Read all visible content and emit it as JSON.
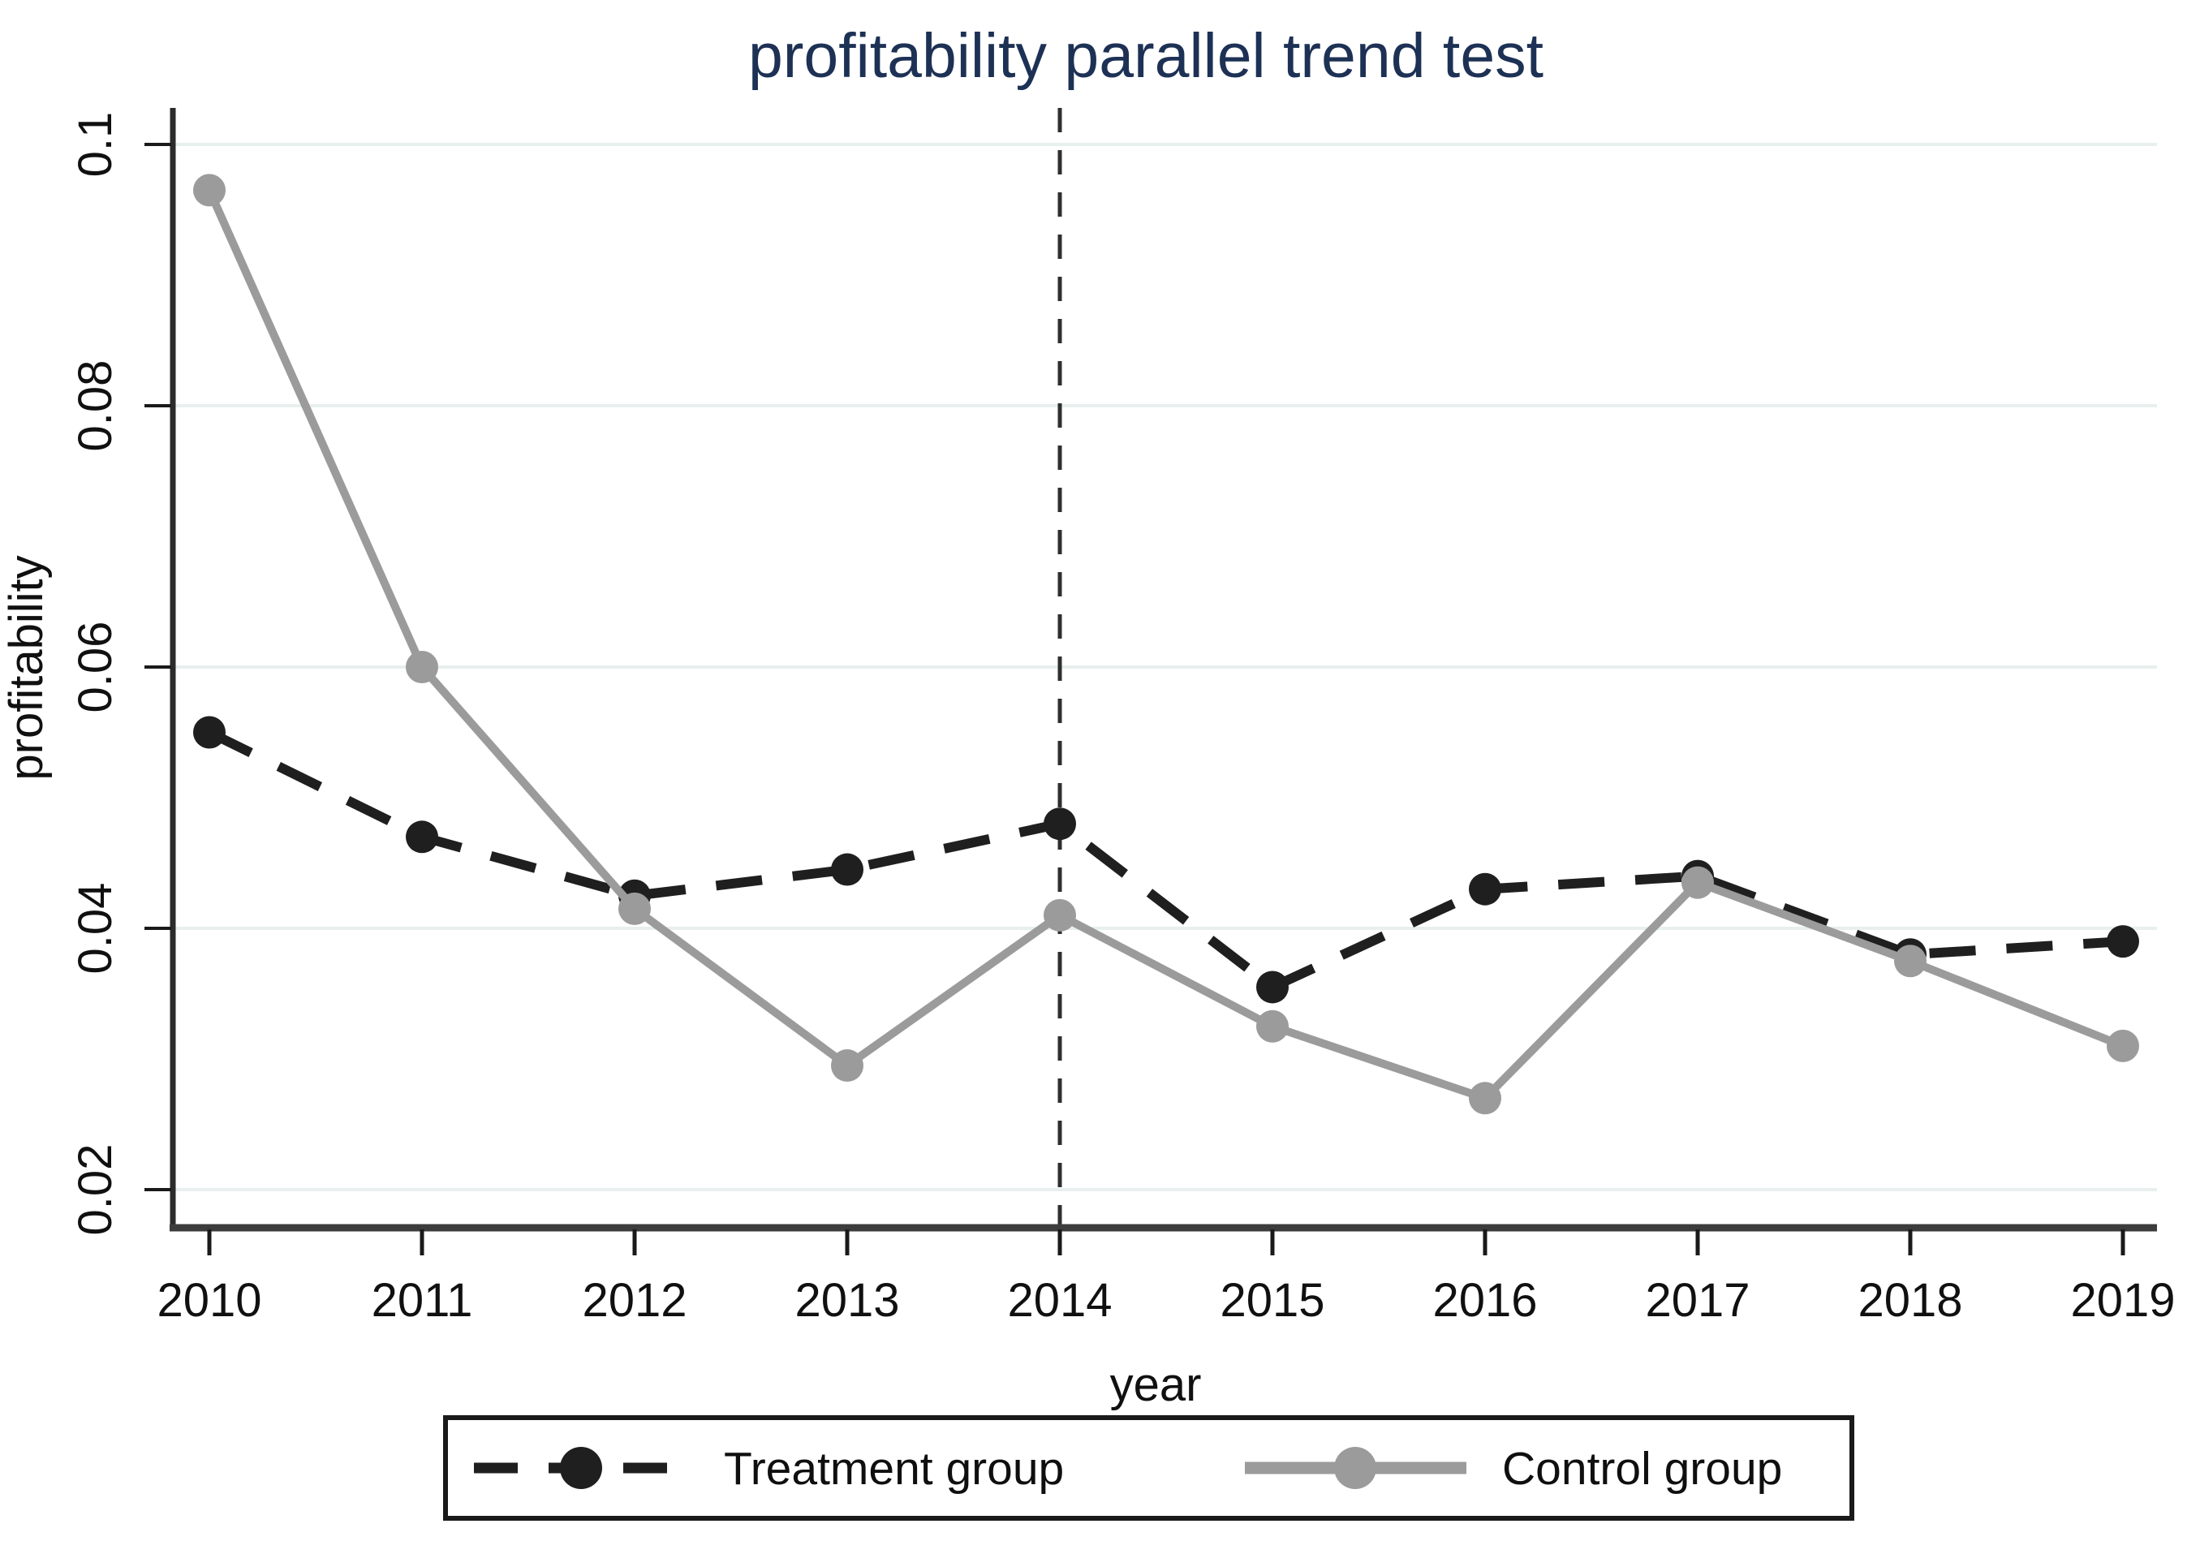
{
  "chart_data": {
    "type": "line",
    "title": "profitability parallel trend test",
    "xlabel": "year",
    "ylabel": "profitability",
    "x": [
      2010,
      2011,
      2012,
      2013,
      2014,
      2015,
      2016,
      2017,
      2018,
      2019
    ],
    "x_tick_labels": [
      "2010",
      "2011",
      "2012",
      "2013",
      "2014",
      "2015",
      "2016",
      "2017",
      "2018",
      "2019"
    ],
    "y_ticks": [
      0.1,
      0.08,
      0.06,
      0.04,
      0.02
    ],
    "y_tick_labels": [
      "0.1",
      "0.08",
      "0.06",
      "0.04",
      "0.02"
    ],
    "ylim": [
      0.0171,
      0.1028
    ],
    "grid": true,
    "legend_position": "bottom",
    "reference_line_x": 2014,
    "series": [
      {
        "name": "Treatment group",
        "style": "dashed",
        "color": "#1f1f1f",
        "values": [
          0.055,
          0.047,
          0.0425,
          0.0445,
          0.048,
          0.0355,
          0.043,
          0.044,
          0.038,
          0.039
        ]
      },
      {
        "name": "Control group",
        "style": "solid",
        "color": "#9b9b9b",
        "values": [
          0.0965,
          0.06,
          0.0415,
          0.0295,
          0.041,
          0.0325,
          0.027,
          0.0435,
          0.0375,
          0.031
        ]
      }
    ],
    "colors": {
      "title": "#1d3155",
      "gridline": "#e7f0ef",
      "axis_line": "#3c3c3c",
      "tick": "#1a1a1a",
      "reference_line": "#2f2f2f",
      "treatment": "#1f1f1f",
      "control": "#9b9b9b",
      "legend_border": "#1a1a1a",
      "background": "#ffffff"
    }
  }
}
